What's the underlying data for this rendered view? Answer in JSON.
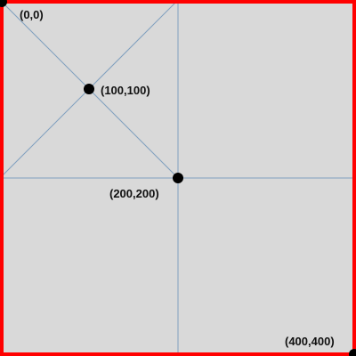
{
  "colors": {
    "background": "#d9d9d9",
    "border": "#ff0000",
    "guide_lines": "#7f9fbf",
    "points": "#000000",
    "label_text": "#111111"
  },
  "labels": {
    "origin": "(0,0)",
    "quarter": "(100,100)",
    "center": "(200,200)",
    "corner": "(400,400)"
  }
}
